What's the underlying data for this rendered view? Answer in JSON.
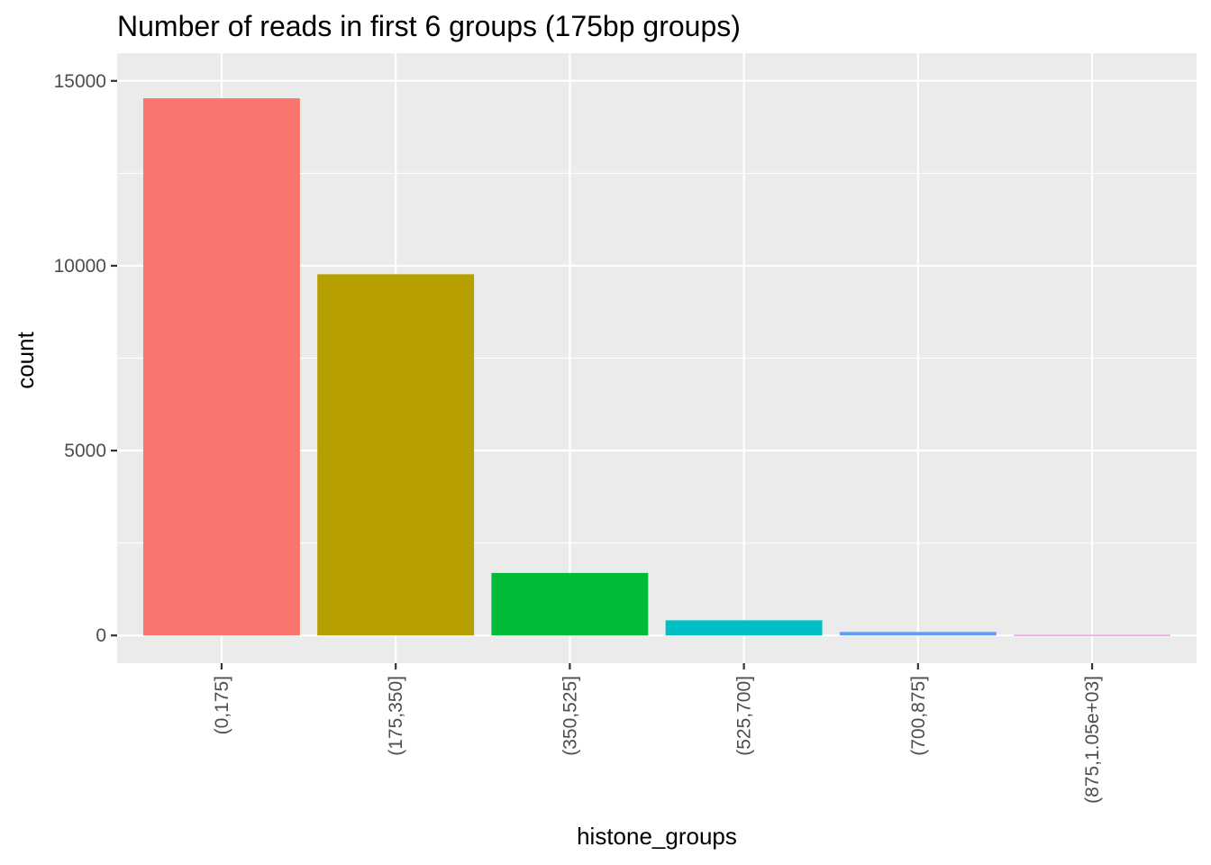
{
  "chart_data": {
    "type": "bar",
    "title": "Number of reads in first 6 groups (175bp groups)",
    "xlabel": "histone_groups",
    "ylabel": "count",
    "categories": [
      "(0,175]",
      "(175,350]",
      "(350,525]",
      "(525,700]",
      "(700,875]",
      "(875,1.05e+03]"
    ],
    "values": [
      14530,
      9770,
      1690,
      410,
      95,
      15
    ],
    "colors": [
      "#F8766D",
      "#B79F00",
      "#00BA38",
      "#00BFC4",
      "#619CFF",
      "#F564E3"
    ],
    "ylim": [
      -750,
      15750
    ],
    "yticks": [
      0,
      5000,
      10000,
      15000
    ],
    "ytick_labels": [
      "0",
      "5000",
      "10000",
      "15000"
    ],
    "panel_background": "#EBEBEB",
    "grid_color": "#FFFFFF",
    "grid": true,
    "legend": "none"
  }
}
